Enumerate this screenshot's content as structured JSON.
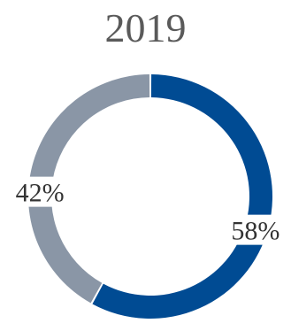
{
  "chart_data": {
    "type": "pie",
    "variant": "donut",
    "title": "2019",
    "slices": [
      {
        "value": 58,
        "label": "58%",
        "color": "#004b93"
      },
      {
        "value": 42,
        "label": "42%",
        "color": "#8a96a6"
      }
    ],
    "start": "top",
    "direction": "clockwise",
    "legend": "none"
  }
}
